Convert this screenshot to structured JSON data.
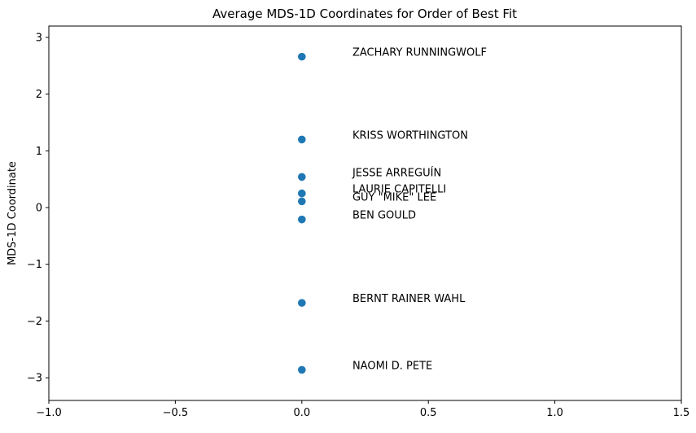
{
  "chart_data": {
    "type": "scatter",
    "title": "Average MDS-1D Coordinates for Order of Best Fit",
    "xlabel": "",
    "ylabel": "MDS-1D Coordinate",
    "xlim": [
      -1.0,
      1.5
    ],
    "ylim": [
      -3.4,
      3.2
    ],
    "xticks": [
      -1.0,
      -0.5,
      0.0,
      0.5,
      1.0,
      1.5
    ],
    "xtick_labels": [
      "−1.0",
      "−0.5",
      "0.0",
      "0.5",
      "1.0",
      "1.5"
    ],
    "yticks": [
      -3,
      -2,
      -1,
      0,
      1,
      2,
      3
    ],
    "ytick_labels": [
      "−3",
      "−2",
      "−1",
      "0",
      "1",
      "2",
      "3"
    ],
    "grid": false,
    "point_color": "#1f77b4",
    "label_x_offset": 0.2,
    "points": [
      {
        "label": "ZACHARY RUNNINGWOLF",
        "x": 0.0,
        "y": 2.66
      },
      {
        "label": "KRISS WORTHINGTON",
        "x": 0.0,
        "y": 1.2
      },
      {
        "label": "JESSE ARREGUÍN",
        "x": 0.0,
        "y": 0.54
      },
      {
        "label": "LAURIE CAPITELLI",
        "x": 0.0,
        "y": 0.25
      },
      {
        "label": "GUY \"MIKE\" LEE",
        "x": 0.0,
        "y": 0.11
      },
      {
        "label": "BEN GOULD",
        "x": 0.0,
        "y": -0.21
      },
      {
        "label": "BERNT RAINER WAHL",
        "x": 0.0,
        "y": -1.68
      },
      {
        "label": "NAOMI D. PETE",
        "x": 0.0,
        "y": -2.86
      }
    ]
  }
}
